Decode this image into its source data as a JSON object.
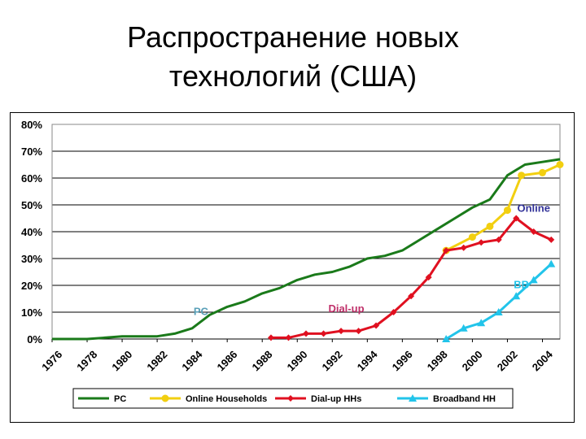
{
  "title_line1": "Распространение новых",
  "title_line2": "технологий (США)",
  "chart_data": {
    "type": "line",
    "title": "Распространение новых технологий (США)",
    "xlabel": "",
    "ylabel": "",
    "xlim": [
      1976,
      2005
    ],
    "ylim": [
      0,
      80
    ],
    "x_ticks": [
      "1976",
      "1978",
      "1980",
      "1982",
      "1984",
      "1986",
      "1988",
      "1990",
      "1992",
      "1994",
      "1996",
      "1998",
      "2000",
      "2002",
      "2004"
    ],
    "y_ticks": [
      "0%",
      "10%",
      "20%",
      "30%",
      "40%",
      "50%",
      "60%",
      "70%",
      "80%"
    ],
    "grid": "horizontal",
    "legend_position": "bottom",
    "series": [
      {
        "name": "PC",
        "color": "#1a7a1a",
        "marker": "none",
        "points": [
          [
            1976,
            0
          ],
          [
            1978,
            0
          ],
          [
            1979,
            0.5
          ],
          [
            1980,
            1
          ],
          [
            1981,
            1
          ],
          [
            1982,
            1
          ],
          [
            1983,
            2
          ],
          [
            1984,
            4
          ],
          [
            1985,
            9
          ],
          [
            1986,
            12
          ],
          [
            1987,
            14
          ],
          [
            1988,
            17
          ],
          [
            1989,
            19
          ],
          [
            1990,
            22
          ],
          [
            1991,
            24
          ],
          [
            1992,
            25
          ],
          [
            1993,
            27
          ],
          [
            1994,
            30
          ],
          [
            1995,
            31
          ],
          [
            1996,
            33
          ],
          [
            1997,
            37
          ],
          [
            1998,
            41
          ],
          [
            1999,
            45
          ],
          [
            2000,
            49
          ],
          [
            2001,
            52
          ],
          [
            2002,
            61
          ],
          [
            2003,
            65
          ],
          [
            2004,
            66
          ],
          [
            2005,
            67
          ]
        ]
      },
      {
        "name": "Online Households",
        "color": "#f2cf10",
        "marker": "circle",
        "points": [
          [
            1998.5,
            33
          ],
          [
            2000,
            38
          ],
          [
            2001,
            42
          ],
          [
            2002,
            48
          ],
          [
            2002.8,
            61
          ],
          [
            2004,
            62
          ],
          [
            2005,
            65
          ]
        ]
      },
      {
        "name": "Dial-up HHs",
        "color": "#e01020",
        "marker": "diamond",
        "points": [
          [
            1988.5,
            0.5
          ],
          [
            1989.5,
            0.5
          ],
          [
            1990.5,
            2
          ],
          [
            1991.5,
            2
          ],
          [
            1992.5,
            3
          ],
          [
            1993.5,
            3
          ],
          [
            1994.5,
            5
          ],
          [
            1995.5,
            10
          ],
          [
            1996.5,
            16
          ],
          [
            1997.5,
            23
          ],
          [
            1998.5,
            33
          ],
          [
            1999.5,
            34
          ],
          [
            2000.5,
            36
          ],
          [
            2001.5,
            37
          ],
          [
            2002.5,
            45
          ],
          [
            2003.5,
            40
          ],
          [
            2004.5,
            37
          ]
        ]
      },
      {
        "name": "Broadband HH",
        "color": "#22c4ea",
        "marker": "triangle",
        "points": [
          [
            1998.5,
            0
          ],
          [
            1999.5,
            4
          ],
          [
            2000.5,
            6
          ],
          [
            2001.5,
            10
          ],
          [
            2002.5,
            16
          ],
          [
            2003.5,
            22
          ],
          [
            2004.5,
            28
          ]
        ]
      }
    ],
    "annotations": [
      {
        "text": "Online",
        "x": 2003.5,
        "y": 47.5,
        "color": "#333399"
      },
      {
        "text": "BB",
        "x": 2002.8,
        "y": 19,
        "color": "#22c4ea"
      },
      {
        "text": "Dial-up",
        "x": 1992.8,
        "y": 10,
        "color": "#c0306a"
      },
      {
        "text": "PC",
        "x": 1984.5,
        "y": 9,
        "color": "#5aa0b8"
      }
    ]
  }
}
